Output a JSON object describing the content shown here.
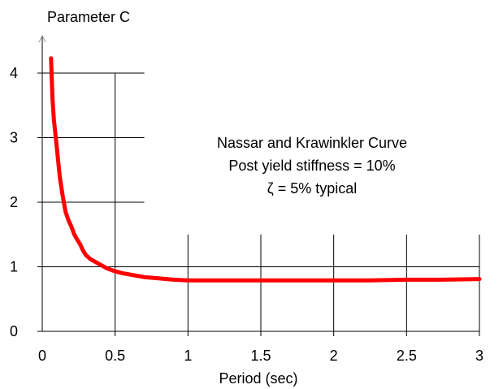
{
  "chart_data": {
    "type": "line",
    "ylabel": "Parameter C",
    "xlabel": "Period (sec)",
    "annotation": [
      "Nassar and Krawinkler Curve",
      "Post yield stiffness = 10%",
      "ζ = 5% typical"
    ],
    "xlim": [
      0,
      3
    ],
    "ylim": [
      0,
      4
    ],
    "x_ticks": [
      "0",
      "0.5",
      "1",
      "1.5",
      "2",
      "2.5",
      "3"
    ],
    "y_ticks": [
      "0",
      "1",
      "2",
      "3",
      "4"
    ],
    "grid": true,
    "series": [
      {
        "color": "#ff0000",
        "x": [
          0.06,
          0.07,
          0.08,
          0.1,
          0.12,
          0.14,
          0.16,
          0.18,
          0.2,
          0.22,
          0.24,
          0.26,
          0.28,
          0.3,
          0.33,
          0.36,
          0.4,
          0.45,
          0.5,
          0.55,
          0.6,
          0.7,
          0.8,
          0.9,
          1.0,
          1.25,
          1.5,
          1.75,
          2.0,
          2.25,
          2.5,
          2.75,
          3.0
        ],
        "y": [
          4.23,
          3.6,
          3.28,
          2.85,
          2.4,
          2.1,
          1.85,
          1.72,
          1.62,
          1.5,
          1.42,
          1.35,
          1.25,
          1.18,
          1.12,
          1.08,
          1.03,
          0.97,
          0.93,
          0.9,
          0.88,
          0.84,
          0.82,
          0.8,
          0.79,
          0.79,
          0.79,
          0.79,
          0.79,
          0.79,
          0.8,
          0.8,
          0.81
        ]
      }
    ]
  }
}
